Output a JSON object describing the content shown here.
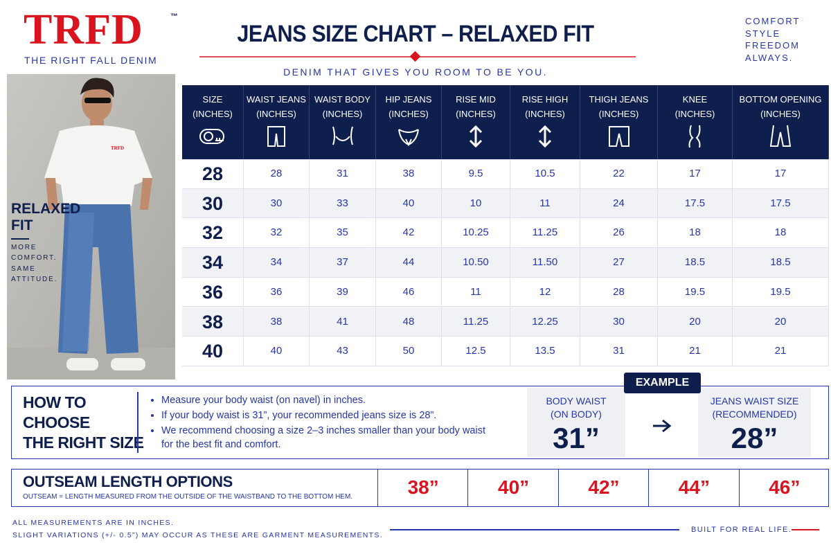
{
  "header": {
    "logo": "TRFD",
    "trademark": "™",
    "logo_tagline": "THE RIGHT FALL DENIM",
    "title": "JEANS SIZE CHART – RELAXED FIT",
    "subtitle": "DENIM THAT GIVES YOU ROOM TO BE YOU.",
    "slogan": [
      "COMFORT",
      "STYLE",
      "FREEDOM",
      "ALWAYS."
    ]
  },
  "hero": {
    "shirt_logo": "TRFD",
    "title": [
      "RELAXED",
      "FIT"
    ],
    "caption": [
      "MORE",
      "COMFORT.",
      "SAME",
      "ATTITUDE."
    ]
  },
  "table": {
    "columns": [
      {
        "name": "SIZE",
        "unit": "(INCHES)"
      },
      {
        "name": "WAIST JEANS",
        "unit": "(INCHES)"
      },
      {
        "name": "WAIST BODY",
        "unit": "(INCHES)"
      },
      {
        "name": "HIP JEANS",
        "unit": "(INCHES)"
      },
      {
        "name": "RISE MID",
        "unit": "(INCHES)"
      },
      {
        "name": "RISE HIGH",
        "unit": "(INCHES)"
      },
      {
        "name": "THIGH JEANS",
        "unit": "(INCHES)"
      },
      {
        "name": "KNEE",
        "unit": "(INCHES)"
      },
      {
        "name": "BOTTOM OPENING",
        "unit": "(INCHES)"
      }
    ],
    "rows": [
      [
        "28",
        "28",
        "31",
        "38",
        "9.5",
        "10.5",
        "22",
        "17",
        "17"
      ],
      [
        "30",
        "30",
        "33",
        "40",
        "10",
        "11",
        "24",
        "17.5",
        "17.5"
      ],
      [
        "32",
        "32",
        "35",
        "42",
        "10.25",
        "11.25",
        "26",
        "18",
        "18"
      ],
      [
        "34",
        "34",
        "37",
        "44",
        "10.50",
        "11.50",
        "27",
        "18.5",
        "18.5"
      ],
      [
        "36",
        "36",
        "39",
        "46",
        "11",
        "12",
        "28",
        "19.5",
        "19.5"
      ],
      [
        "38",
        "38",
        "41",
        "48",
        "11.25",
        "12.25",
        "30",
        "20",
        "20"
      ],
      [
        "40",
        "40",
        "43",
        "50",
        "12.5",
        "13.5",
        "31",
        "21",
        "21"
      ]
    ]
  },
  "how_to": {
    "title": [
      "HOW TO",
      "CHOOSE",
      "THE RIGHT SIZE"
    ],
    "bullets": [
      "Measure your body waist (on navel) in inches.",
      "If your body waist is 31”, your recommended jeans size is 28”.",
      "We recommend choosing a size 2–3 inches smaller than your body waist for the best fit and comfort."
    ],
    "example": {
      "badge": "EXAMPLE",
      "from_label": [
        "BODY WAIST",
        "(ON BODY)"
      ],
      "from_value": "31”",
      "to_label": [
        "JEANS WAIST SIZE",
        "(RECOMMENDED)"
      ],
      "to_value": "28”"
    }
  },
  "outseam": {
    "title": "OUTSEAM LENGTH OPTIONS",
    "note": "OUTSEAM = LENGTH MEASURED FROM THE OUTSIDE OF THE WAISTBAND TO THE BOTTOM HEM.",
    "options": [
      "38”",
      "40”",
      "42”",
      "44”",
      "46”"
    ]
  },
  "footer": {
    "notes": [
      "ALL MEASUREMENTS ARE IN INCHES.",
      "SLIGHT VARIATIONS (+/- 0.5”) MAY OCCUR AS THESE ARE GARMENT MEASUREMENTS."
    ],
    "tagline": "BUILT FOR REAL LIFE."
  }
}
